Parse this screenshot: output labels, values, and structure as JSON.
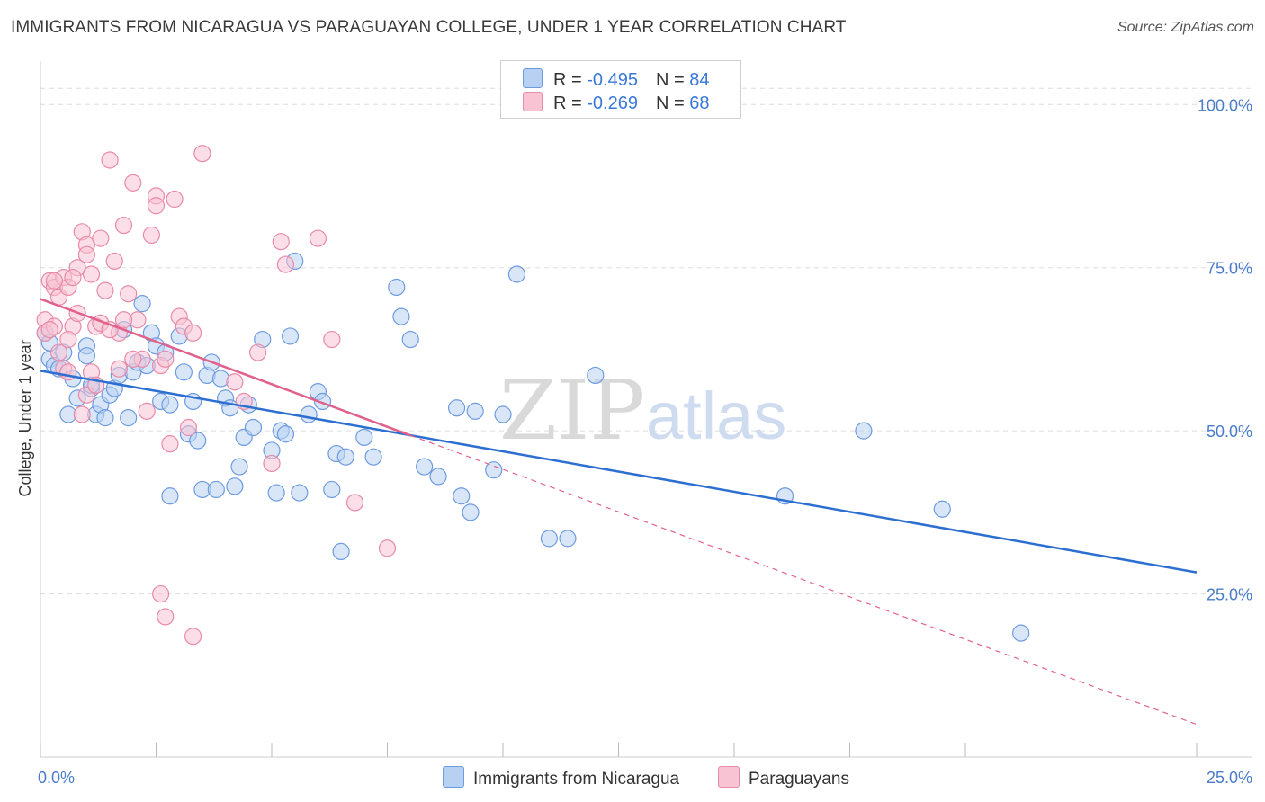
{
  "title": "IMMIGRANTS FROM NICARAGUA VS PARAGUAYAN COLLEGE, UNDER 1 YEAR CORRELATION CHART",
  "source": "Source: ZipAtlas.com",
  "legend": {
    "row1": {
      "r_label": "R = ",
      "r_value": "-0.495",
      "n_label": "N = ",
      "n_value": "84"
    },
    "row2": {
      "r_label": "R = ",
      "r_value": "-0.269",
      "n_label": "N = ",
      "n_value": "68"
    }
  },
  "colors": {
    "blue_fill": "#b8d1f3",
    "blue_stroke": "#6d9be0",
    "blue_line": "#2c6fd1",
    "pink_fill": "#f8c3d3",
    "pink_stroke": "#e88aa8",
    "pink_line": "#e0628c",
    "grid": "#dddddd",
    "tick_text": "#4a7cc9"
  },
  "chart_data": {
    "type": "scatter",
    "title": "IMMIGRANTS FROM NICARAGUA VS PARAGUAYAN COLLEGE, UNDER 1 YEAR CORRELATION CHART",
    "xlabel": "",
    "ylabel": "College, Under 1 year",
    "xlim": [
      0,
      25
    ],
    "ylim": [
      0,
      105
    ],
    "x_tick_labels": [
      "0.0%",
      "25.0%"
    ],
    "y_tick_labels": [
      "25.0%",
      "50.0%",
      "75.0%",
      "100.0%"
    ],
    "y_ticks": [
      25,
      50,
      75,
      100
    ],
    "grid": true,
    "legend_position": "bottom",
    "series": [
      {
        "name": "Immigrants from Nicaragua",
        "color": "#6d9be0",
        "points": [
          [
            0.1,
            65.0
          ],
          [
            0.2,
            61.0
          ],
          [
            0.3,
            60.0
          ],
          [
            0.4,
            59.5
          ],
          [
            0.5,
            62.0
          ],
          [
            0.6,
            52.5
          ],
          [
            0.7,
            58.0
          ],
          [
            0.8,
            55.0
          ],
          [
            1.0,
            63.0
          ],
          [
            1.0,
            61.5
          ],
          [
            1.1,
            56.5
          ],
          [
            1.2,
            52.5
          ],
          [
            1.3,
            54.0
          ],
          [
            1.4,
            52.0
          ],
          [
            1.5,
            55.5
          ],
          [
            1.6,
            56.5
          ],
          [
            1.7,
            58.5
          ],
          [
            1.8,
            65.5
          ],
          [
            1.9,
            52.0
          ],
          [
            2.0,
            59.0
          ],
          [
            2.1,
            60.5
          ],
          [
            2.2,
            69.5
          ],
          [
            2.4,
            65.0
          ],
          [
            2.5,
            63.0
          ],
          [
            2.6,
            54.5
          ],
          [
            2.7,
            62.0
          ],
          [
            2.8,
            54.0
          ],
          [
            2.8,
            40.0
          ],
          [
            3.0,
            64.5
          ],
          [
            3.1,
            59.0
          ],
          [
            3.2,
            49.5
          ],
          [
            3.3,
            54.5
          ],
          [
            3.4,
            48.5
          ],
          [
            3.5,
            41.0
          ],
          [
            3.6,
            58.5
          ],
          [
            3.7,
            60.5
          ],
          [
            3.8,
            41.0
          ],
          [
            4.0,
            55.0
          ],
          [
            4.1,
            53.5
          ],
          [
            4.2,
            41.5
          ],
          [
            4.3,
            44.5
          ],
          [
            4.4,
            49.0
          ],
          [
            4.5,
            54.0
          ],
          [
            4.6,
            50.5
          ],
          [
            4.8,
            64.0
          ],
          [
            5.0,
            47.0
          ],
          [
            5.1,
            40.5
          ],
          [
            5.2,
            50.0
          ],
          [
            5.3,
            49.5
          ],
          [
            5.4,
            64.5
          ],
          [
            5.5,
            76.0
          ],
          [
            5.6,
            40.5
          ],
          [
            5.8,
            52.5
          ],
          [
            6.0,
            56.0
          ],
          [
            6.1,
            54.5
          ],
          [
            6.3,
            41.0
          ],
          [
            6.4,
            46.5
          ],
          [
            6.5,
            31.5
          ],
          [
            6.6,
            46.0
          ],
          [
            7.0,
            49.0
          ],
          [
            7.2,
            46.0
          ],
          [
            7.7,
            72.0
          ],
          [
            7.8,
            67.5
          ],
          [
            8.0,
            64.0
          ],
          [
            8.3,
            44.5
          ],
          [
            8.6,
            43.0
          ],
          [
            9.0,
            53.5
          ],
          [
            9.1,
            40.0
          ],
          [
            9.3,
            37.5
          ],
          [
            9.4,
            53.0
          ],
          [
            9.8,
            44.0
          ],
          [
            10.0,
            52.5
          ],
          [
            10.3,
            74.0
          ],
          [
            11.0,
            33.5
          ],
          [
            11.4,
            33.5
          ],
          [
            12.0,
            58.5
          ],
          [
            16.1,
            40.0
          ],
          [
            17.8,
            50.0
          ],
          [
            19.5,
            38.0
          ],
          [
            21.2,
            19.0
          ],
          [
            0.2,
            63.5
          ],
          [
            1.1,
            57.0
          ],
          [
            2.3,
            60.0
          ],
          [
            3.9,
            58.0
          ]
        ]
      },
      {
        "name": "Paraguayans",
        "color": "#e88aa8",
        "points": [
          [
            0.1,
            67.0
          ],
          [
            0.1,
            65.0
          ],
          [
            0.2,
            73.0
          ],
          [
            0.3,
            72.0
          ],
          [
            0.3,
            66.0
          ],
          [
            0.4,
            70.5
          ],
          [
            0.5,
            73.5
          ],
          [
            0.6,
            72.0
          ],
          [
            0.7,
            66.0
          ],
          [
            0.8,
            68.0
          ],
          [
            0.8,
            75.0
          ],
          [
            0.9,
            80.5
          ],
          [
            1.0,
            78.5
          ],
          [
            1.0,
            77.0
          ],
          [
            1.1,
            74.0
          ],
          [
            1.2,
            66.0
          ],
          [
            1.3,
            79.5
          ],
          [
            1.4,
            71.5
          ],
          [
            1.5,
            91.5
          ],
          [
            1.6,
            76.0
          ],
          [
            1.7,
            65.0
          ],
          [
            1.8,
            81.5
          ],
          [
            1.9,
            71.0
          ],
          [
            2.0,
            88.0
          ],
          [
            2.1,
            67.0
          ],
          [
            2.2,
            61.0
          ],
          [
            2.3,
            53.0
          ],
          [
            2.4,
            80.0
          ],
          [
            2.5,
            86.0
          ],
          [
            2.5,
            84.5
          ],
          [
            2.6,
            60.0
          ],
          [
            2.7,
            61.0
          ],
          [
            2.8,
            48.0
          ],
          [
            2.9,
            85.5
          ],
          [
            3.0,
            67.5
          ],
          [
            3.1,
            66.0
          ],
          [
            3.2,
            50.5
          ],
          [
            3.3,
            65.0
          ],
          [
            3.5,
            92.5
          ],
          [
            4.2,
            57.5
          ],
          [
            4.4,
            54.5
          ],
          [
            4.7,
            62.0
          ],
          [
            5.0,
            45.0
          ],
          [
            5.2,
            79.0
          ],
          [
            5.3,
            75.5
          ],
          [
            6.0,
            79.5
          ],
          [
            6.3,
            64.0
          ],
          [
            6.8,
            39.0
          ],
          [
            7.5,
            32.0
          ],
          [
            2.6,
            25.0
          ],
          [
            2.7,
            21.5
          ],
          [
            3.3,
            18.5
          ],
          [
            1.0,
            55.5
          ],
          [
            1.1,
            59.0
          ],
          [
            1.2,
            57.0
          ],
          [
            0.5,
            59.5
          ],
          [
            0.6,
            64.0
          ],
          [
            0.9,
            52.5
          ],
          [
            1.3,
            66.5
          ],
          [
            1.8,
            67.0
          ],
          [
            2.0,
            61.0
          ],
          [
            0.3,
            73.0
          ],
          [
            0.7,
            73.5
          ],
          [
            1.5,
            65.5
          ],
          [
            0.2,
            65.5
          ],
          [
            0.4,
            62.0
          ],
          [
            0.6,
            59.0
          ],
          [
            1.7,
            59.5
          ]
        ]
      }
    ],
    "trend_lines": [
      {
        "series": "Immigrants from Nicaragua",
        "x": [
          0,
          25
        ],
        "y": [
          59.2,
          28.3
        ]
      },
      {
        "series": "Paraguayans",
        "x": [
          0,
          8
        ],
        "y": [
          70.2,
          49.3
        ],
        "dashed_extension_to": [
          25,
          5.0
        ]
      }
    ]
  },
  "bottom_legend": {
    "item1": "Immigrants from Nicaragua",
    "item2": "Paraguayans"
  },
  "watermark": {
    "part1": "ZIP",
    "part2": "atlas"
  }
}
